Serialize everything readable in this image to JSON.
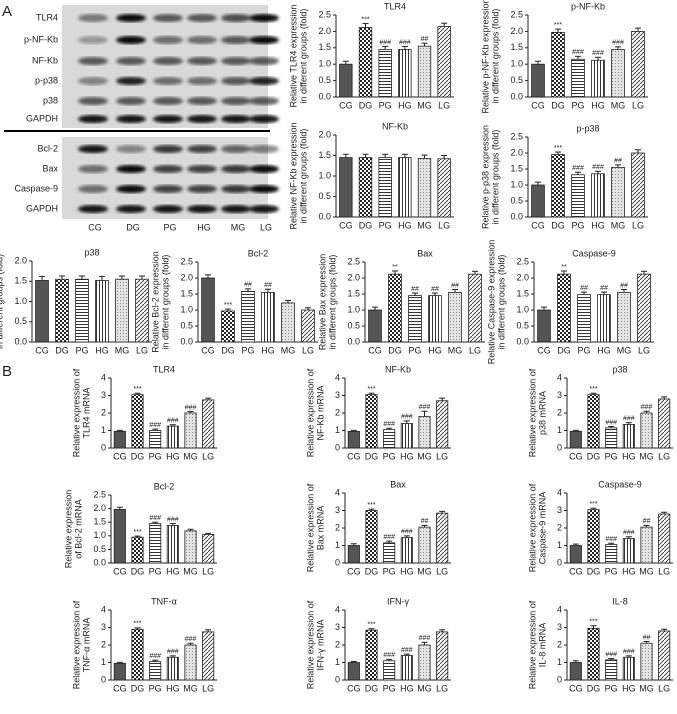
{
  "panel_labels": [
    "A",
    "B"
  ],
  "blot": {
    "groups": [
      [
        "TLR4",
        "p-NF-Kb",
        "NF-Kb",
        "p-p38",
        "p38",
        "GAPDH"
      ],
      [
        "Bcl-2",
        "Bax",
        "Caspase-9",
        "GAPDH"
      ]
    ],
    "lanes": [
      "CG",
      "DG",
      "PG",
      "HG",
      "MG",
      "LG"
    ]
  },
  "bar_patterns": [
    "solid",
    "checker",
    "hlines",
    "vlines",
    "dots",
    "diagonal"
  ],
  "chart_data": [
    {
      "type": "bar",
      "title": "TLR4",
      "ylabel": [
        "Relative TLR4 expression",
        "in different groups (fold)"
      ],
      "categories": [
        "CG",
        "DG",
        "PG",
        "HG",
        "MG",
        "LG"
      ],
      "values": [
        1.0,
        2.12,
        1.45,
        1.45,
        1.55,
        2.15
      ],
      "errors": [
        0.09,
        0.12,
        0.09,
        0.09,
        0.09,
        0.1
      ],
      "annotations": [
        null,
        "***",
        "###",
        "###",
        "##",
        null
      ],
      "ylim": [
        0,
        2.5
      ],
      "yticks": [
        {
          "value": 0,
          "label": "0.0"
        },
        0.5,
        {
          "value": 1,
          "label": "1.0"
        },
        1.5,
        {
          "value": 2,
          "label": "2.0"
        },
        2.5
      ]
    },
    {
      "type": "bar",
      "title": "p-NF-Kb",
      "ylabel": [
        "Relative p-NF-Kb expression",
        "in different groups (fold)"
      ],
      "categories": [
        "CG",
        "DG",
        "PG",
        "HG",
        "MG",
        "LG"
      ],
      "values": [
        1.0,
        1.97,
        1.15,
        1.12,
        1.45,
        2.0
      ],
      "errors": [
        0.09,
        0.1,
        0.09,
        0.09,
        0.08,
        0.1
      ],
      "annotations": [
        null,
        "***",
        "###",
        "###",
        "###",
        null
      ],
      "ylim": [
        0,
        2.5
      ],
      "yticks": [
        {
          "value": 0,
          "label": "0.0"
        },
        0.5,
        {
          "value": 1,
          "label": "1.0"
        },
        1.5,
        {
          "value": 2,
          "label": "2.0"
        },
        2.5
      ]
    },
    {
      "type": "bar",
      "title": "NF-Kb",
      "ylabel": [
        "Relative NF-Kb expression",
        "in different groups (fold)"
      ],
      "categories": [
        "CG",
        "DG",
        "PG",
        "HG",
        "MG",
        "LG"
      ],
      "values": [
        1.45,
        1.45,
        1.45,
        1.45,
        1.43,
        1.42
      ],
      "errors": [
        0.08,
        0.08,
        0.08,
        0.08,
        0.08,
        0.08
      ],
      "annotations": [
        null,
        null,
        null,
        null,
        null,
        null
      ],
      "ylim": [
        0,
        2.0
      ],
      "yticks": [
        {
          "value": 0,
          "label": "0.0"
        },
        0.5,
        {
          "value": 1,
          "label": "1.0"
        },
        1.5,
        {
          "value": 2,
          "label": "2.0"
        }
      ]
    },
    {
      "type": "bar",
      "title": "p-p38",
      "ylabel": [
        "Relative p-p38 expression",
        "in different groups (fold)"
      ],
      "categories": [
        "CG",
        "DG",
        "PG",
        "HG",
        "MG",
        "LG"
      ],
      "values": [
        1.0,
        1.95,
        1.32,
        1.35,
        1.55,
        2.0
      ],
      "errors": [
        0.09,
        0.08,
        0.08,
        0.08,
        0.08,
        0.1
      ],
      "annotations": [
        null,
        "***",
        "###",
        "###",
        "##",
        null
      ],
      "ylim": [
        0,
        2.5
      ],
      "yticks": [
        {
          "value": 0,
          "label": "0.0"
        },
        0.5,
        {
          "value": 1,
          "label": "1.0"
        },
        1.5,
        {
          "value": 2,
          "label": "2.0"
        },
        2.5
      ]
    },
    {
      "type": "bar",
      "title": "p38",
      "ylabel": [
        "Relative p38 expression",
        "in different groups (fold)"
      ],
      "categories": [
        "CG",
        "DG",
        "PG",
        "HG",
        "MG",
        "LG"
      ],
      "values": [
        1.52,
        1.55,
        1.55,
        1.52,
        1.55,
        1.55
      ],
      "errors": [
        0.1,
        0.08,
        0.08,
        0.1,
        0.08,
        0.08
      ],
      "annotations": [
        null,
        null,
        null,
        null,
        null,
        null
      ],
      "ylim": [
        0,
        2.0
      ],
      "yticks": [
        {
          "value": 0,
          "label": "0.0"
        },
        0.5,
        {
          "value": 1,
          "label": "1.0"
        },
        1.5,
        {
          "value": 2,
          "label": "2.0"
        }
      ]
    },
    {
      "type": "bar",
      "title": "Bcl-2",
      "ylabel": [
        "Relative Bcl-2 expression",
        "in different groups (fold)"
      ],
      "categories": [
        "CG",
        "DG",
        "PG",
        "HG",
        "MG",
        "LG"
      ],
      "values": [
        2.0,
        0.97,
        1.58,
        1.55,
        1.22,
        1.0
      ],
      "errors": [
        0.1,
        0.06,
        0.08,
        0.1,
        0.08,
        0.07
      ],
      "annotations": [
        null,
        "***",
        "##",
        "##",
        null,
        null
      ],
      "ylim": [
        0,
        2.5
      ],
      "yticks": [
        {
          "value": 0,
          "label": "0.0"
        },
        0.5,
        {
          "value": 1,
          "label": "1.0"
        },
        1.5,
        {
          "value": 2,
          "label": "2.0"
        },
        2.5
      ]
    },
    {
      "type": "bar",
      "title": "Bax",
      "ylabel": [
        "Relative Bax expression",
        "in different groups (fold)"
      ],
      "categories": [
        "CG",
        "DG",
        "PG",
        "HG",
        "MG",
        "LG"
      ],
      "values": [
        1.0,
        2.12,
        1.45,
        1.45,
        1.55,
        2.12
      ],
      "errors": [
        0.09,
        0.1,
        0.08,
        0.08,
        0.09,
        0.09
      ],
      "annotations": [
        null,
        "**",
        "##",
        "##",
        "##",
        null
      ],
      "ylim": [
        0,
        2.5
      ],
      "yticks": [
        {
          "value": 0,
          "label": "0.0"
        },
        0.5,
        {
          "value": 1,
          "label": "1.0"
        },
        1.5,
        {
          "value": 2,
          "label": "2.0"
        },
        2.5
      ]
    },
    {
      "type": "bar",
      "title": "Caspase-9",
      "ylabel": [
        "Relative Caspase-9 expression",
        "in different groups (fold)"
      ],
      "categories": [
        "CG",
        "DG",
        "PG",
        "HG",
        "MG",
        "LG"
      ],
      "values": [
        1.0,
        2.12,
        1.48,
        1.48,
        1.55,
        2.12
      ],
      "errors": [
        0.09,
        0.1,
        0.08,
        0.08,
        0.09,
        0.09
      ],
      "annotations": [
        null,
        "**",
        "##",
        "##",
        "##",
        null
      ],
      "ylim": [
        0,
        2.5
      ],
      "yticks": [
        {
          "value": 0,
          "label": "0.0"
        },
        0.5,
        {
          "value": 1,
          "label": "1.0"
        },
        1.5,
        {
          "value": 2,
          "label": "2.0"
        },
        2.5
      ]
    },
    {
      "type": "bar",
      "title": "TLR4",
      "ylabel": [
        "Relative expression of",
        "TLR4 mRNA"
      ],
      "categories": [
        "CG",
        "DG",
        "PG",
        "HG",
        "MG",
        "LG"
      ],
      "values": [
        0.95,
        3.05,
        1.0,
        1.25,
        2.0,
        2.75
      ],
      "errors": [
        0.06,
        0.08,
        0.08,
        0.08,
        0.08,
        0.1
      ],
      "annotations": [
        null,
        "***",
        "###",
        "###",
        "###",
        null
      ],
      "ylim": [
        0,
        4
      ],
      "yticks": [
        0,
        1,
        2,
        3,
        4
      ]
    },
    {
      "type": "bar",
      "title": "NF-Kb",
      "ylabel": [
        "Relative expression of",
        "NF-Kb mRNA"
      ],
      "categories": [
        "CG",
        "DG",
        "PG",
        "HG",
        "MG",
        "LG"
      ],
      "values": [
        0.95,
        3.05,
        1.05,
        1.4,
        1.8,
        2.7
      ],
      "errors": [
        0.06,
        0.08,
        0.08,
        0.15,
        0.3,
        0.15
      ],
      "annotations": [
        null,
        "***",
        "###",
        "###",
        "###",
        null
      ],
      "ylim": [
        0,
        4
      ],
      "yticks": [
        0,
        1,
        2,
        3,
        4
      ]
    },
    {
      "type": "bar",
      "title": "p38",
      "ylabel": [
        "Relative expression of",
        "p38 mRNA"
      ],
      "categories": [
        "CG",
        "DG",
        "PG",
        "HG",
        "MG",
        "LG"
      ],
      "values": [
        0.95,
        3.05,
        1.15,
        1.35,
        2.0,
        2.8
      ],
      "errors": [
        0.06,
        0.08,
        0.08,
        0.1,
        0.1,
        0.12
      ],
      "annotations": [
        null,
        "***",
        "###",
        "###",
        "###",
        null
      ],
      "ylim": [
        0,
        4
      ],
      "yticks": [
        0,
        1,
        2,
        3,
        4
      ]
    },
    {
      "type": "bar",
      "title": "Bcl-2",
      "ylabel": [
        "Relative expression",
        "of Bcl-2 mRNA"
      ],
      "categories": [
        "CG",
        "DG",
        "PG",
        "HG",
        "MG",
        "LG"
      ],
      "values": [
        1.97,
        0.95,
        1.45,
        1.38,
        1.18,
        1.05
      ],
      "errors": [
        0.08,
        0.04,
        0.05,
        0.07,
        0.06,
        0.04
      ],
      "annotations": [
        null,
        "***",
        "###",
        "###",
        null,
        null
      ],
      "ylim": [
        0,
        2.5
      ],
      "yticks": [
        {
          "value": 0,
          "label": "0.0"
        },
        0.5,
        {
          "value": 1,
          "label": "1.0"
        },
        1.5,
        {
          "value": 2,
          "label": "2.0"
        },
        2.5
      ]
    },
    {
      "type": "bar",
      "title": "Bax",
      "ylabel": [
        "Relative expression of",
        "Bax mRNA"
      ],
      "categories": [
        "CG",
        "DG",
        "PG",
        "HG",
        "MG",
        "LG"
      ],
      "values": [
        1.0,
        3.0,
        1.15,
        1.45,
        2.05,
        2.85
      ],
      "errors": [
        0.1,
        0.08,
        0.1,
        0.1,
        0.1,
        0.1
      ],
      "annotations": [
        null,
        "***",
        "###",
        "###",
        "##",
        null
      ],
      "ylim": [
        0,
        4
      ],
      "yticks": [
        0,
        1,
        2,
        3,
        4
      ]
    },
    {
      "type": "bar",
      "title": "Caspase-9",
      "ylabel": [
        "Relative expression of",
        "Caspase-9 mRNA"
      ],
      "categories": [
        "CG",
        "DG",
        "PG",
        "HG",
        "MG",
        "LG"
      ],
      "values": [
        1.0,
        3.05,
        1.05,
        1.4,
        2.05,
        2.8
      ],
      "errors": [
        0.08,
        0.08,
        0.08,
        0.1,
        0.1,
        0.1
      ],
      "annotations": [
        null,
        "***",
        "###",
        "###",
        "##",
        null
      ],
      "ylim": [
        0,
        4
      ],
      "yticks": [
        0,
        1,
        2,
        3,
        4
      ]
    },
    {
      "type": "bar",
      "title": "TNF-α",
      "ylabel": [
        "Relative expression of",
        "TNF-α mRNA"
      ],
      "categories": [
        "CG",
        "DG",
        "PG",
        "HG",
        "MG",
        "LG"
      ],
      "values": [
        0.95,
        2.9,
        1.05,
        1.3,
        2.0,
        2.75
      ],
      "errors": [
        0.06,
        0.08,
        0.08,
        0.08,
        0.1,
        0.12
      ],
      "annotations": [
        null,
        "***",
        "###",
        "###",
        "###",
        null
      ],
      "ylim": [
        0,
        4
      ],
      "yticks": [
        0,
        1,
        2,
        3,
        4
      ]
    },
    {
      "type": "bar",
      "title": "IFN-γ",
      "ylabel": [
        "Relative expression of",
        "IFN-γ mRNA"
      ],
      "categories": [
        "CG",
        "DG",
        "PG",
        "HG",
        "MG",
        "LG"
      ],
      "values": [
        1.0,
        2.85,
        1.1,
        1.4,
        2.0,
        2.75
      ],
      "errors": [
        0.06,
        0.08,
        0.08,
        0.08,
        0.15,
        0.12
      ],
      "annotations": [
        null,
        "***",
        "###",
        "###",
        "###",
        null
      ],
      "ylim": [
        0,
        4
      ],
      "yticks": [
        0,
        1,
        2,
        3,
        4
      ]
    },
    {
      "type": "bar",
      "title": "IL-8",
      "ylabel": [
        "Relative expression of",
        "IL-8 mRNA"
      ],
      "categories": [
        "CG",
        "DG",
        "PG",
        "HG",
        "MG",
        "LG"
      ],
      "values": [
        1.0,
        2.95,
        1.15,
        1.3,
        2.1,
        2.8
      ],
      "errors": [
        0.1,
        0.15,
        0.08,
        0.08,
        0.1,
        0.1
      ],
      "annotations": [
        null,
        "***",
        "###",
        "###",
        "##",
        null
      ],
      "ylim": [
        0,
        4
      ],
      "yticks": [
        0,
        1,
        2,
        3,
        4
      ]
    }
  ]
}
